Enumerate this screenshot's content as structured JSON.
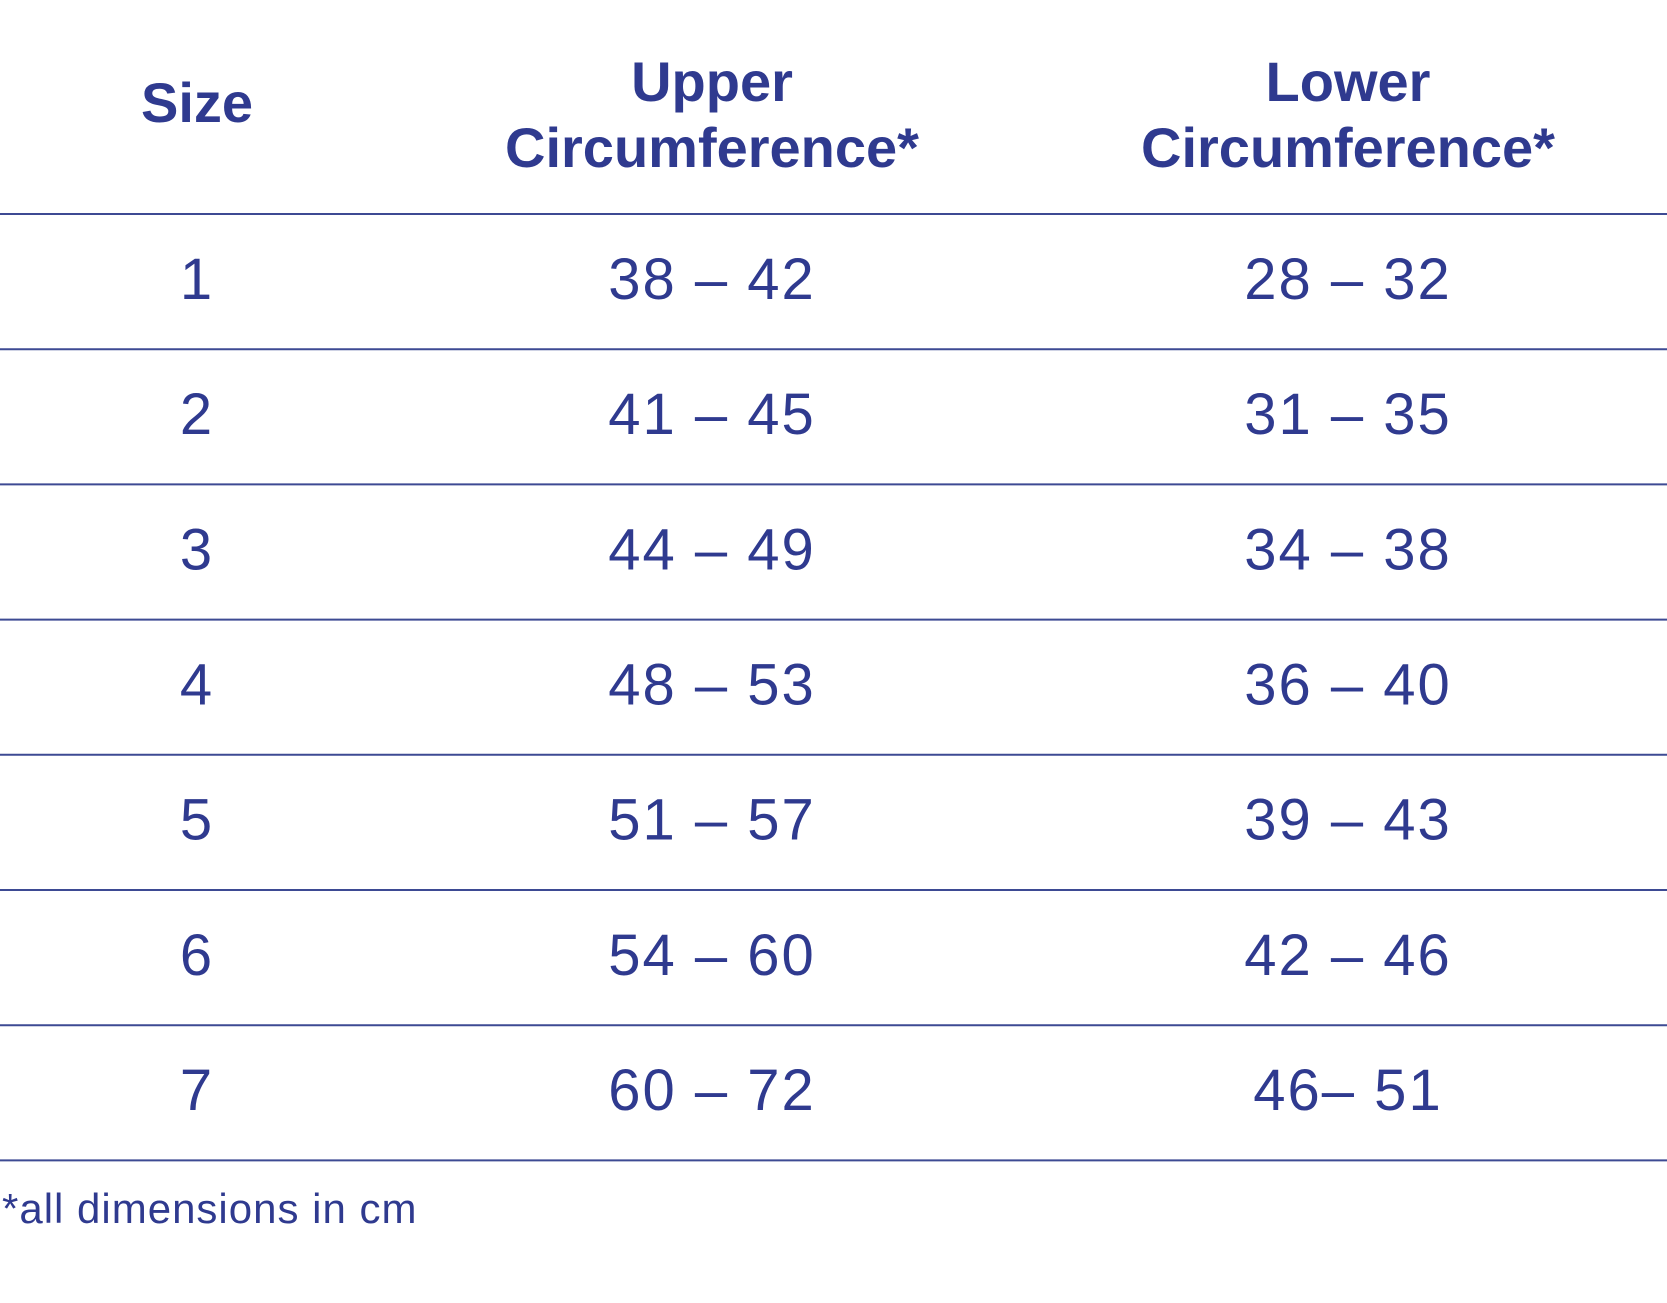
{
  "table": {
    "headers": [
      [
        "Size"
      ],
      [
        "Upper",
        "Circumference*"
      ],
      [
        "Lower",
        "Circumference*"
      ]
    ],
    "rows": [
      [
        "1",
        "38 – 42",
        "28 – 32"
      ],
      [
        "2",
        "41 – 45",
        "31 – 35"
      ],
      [
        "3",
        "44 – 49",
        "34 – 38"
      ],
      [
        "4",
        "48 – 53",
        "36 – 40"
      ],
      [
        "5",
        "51 – 57",
        "39 – 43"
      ],
      [
        "6",
        "54 – 60",
        "42 – 46"
      ],
      [
        "7",
        "60 – 72",
        "46– 51"
      ]
    ],
    "footnote": "*all dimensions in cm"
  }
}
